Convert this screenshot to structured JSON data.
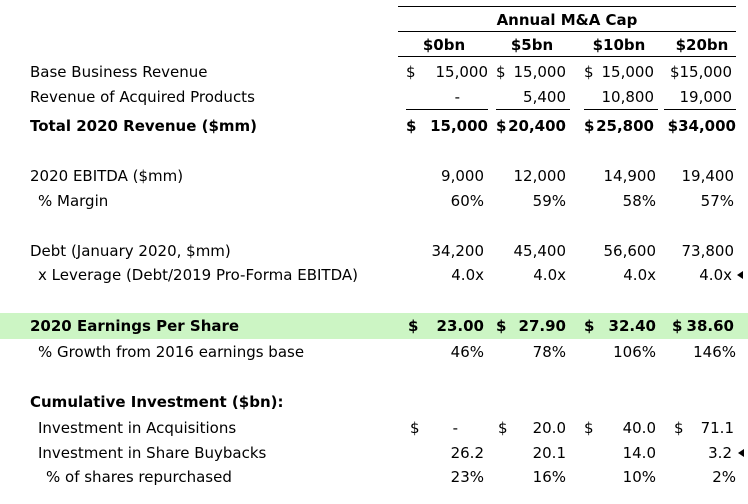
{
  "header": {
    "title": "Annual M&A Cap",
    "columns": [
      "$0bn",
      "$5bn",
      "$10bn",
      "$20bn"
    ]
  },
  "revenue": {
    "base": {
      "label": "Base Business Revenue",
      "values": [
        "15,000",
        "15,000",
        "15,000",
        "$15,000"
      ]
    },
    "acquired": {
      "label": "Revenue of Acquired Products",
      "values": [
        "-",
        "5,400",
        "10,800",
        "19,000"
      ]
    },
    "total": {
      "label": "Total 2020 Revenue ($mm)",
      "values": [
        "15,000",
        "20,400",
        "25,800",
        "$34,000"
      ]
    }
  },
  "ebitda": {
    "label": "2020 EBITDA ($mm)",
    "values": [
      "9,000",
      "12,000",
      "14,900",
      "19,400"
    ],
    "margin_label": "% Margin",
    "margin_values": [
      "60%",
      "59%",
      "58%",
      "57%"
    ]
  },
  "debt": {
    "label": "Debt (January 2020, $mm)",
    "values": [
      "34,200",
      "45,400",
      "56,600",
      "73,800"
    ],
    "leverage_label": "x Leverage (Debt/2019 Pro-Forma EBITDA)",
    "leverage_values": [
      "4.0x",
      "4.0x",
      "4.0x",
      "4.0x"
    ]
  },
  "eps": {
    "label": "2020 Earnings Per Share",
    "values": [
      "23.00",
      "27.90",
      "32.40",
      "38.60"
    ],
    "growth_label": "% Growth from 2016 earnings base",
    "growth_values": [
      "46%",
      "78%",
      "106%",
      "146%"
    ],
    "highlight_color": "#ccf5c4"
  },
  "investment": {
    "heading": "Cumulative Investment ($bn):",
    "acquisitions": {
      "label": "Investment in Acquisitions",
      "values": [
        "-",
        "20.0",
        "40.0",
        "71.1"
      ]
    },
    "buybacks": {
      "label": "Investment in Share Buybacks",
      "values": [
        "26.2",
        "20.1",
        "14.0",
        "3.2"
      ]
    },
    "repurchased": {
      "label": "% of shares repurchased",
      "values": [
        "23%",
        "16%",
        "10%",
        "2%"
      ]
    }
  },
  "currency_symbol": "$"
}
